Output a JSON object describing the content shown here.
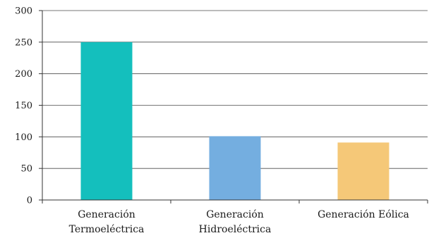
{
  "chart_data": {
    "type": "bar",
    "title": "",
    "xlabel": "",
    "ylabel": "",
    "categories": [
      "Generación Termoeléctrica",
      "Generación Hidroeléctrica",
      "Generación Eólica"
    ],
    "category_lines": [
      [
        "Generación",
        "Termoeléctrica"
      ],
      [
        "Generación",
        "Hidroeléctrica"
      ],
      [
        "Generación Eólica"
      ]
    ],
    "values": [
      250,
      101,
      91
    ],
    "colors": [
      "#14bfbd",
      "#74aee0",
      "#f5c878"
    ],
    "ylim": [
      0,
      300
    ],
    "yticks": [
      0,
      50,
      100,
      150,
      200,
      250,
      300
    ],
    "grid": true,
    "legend": "none"
  }
}
